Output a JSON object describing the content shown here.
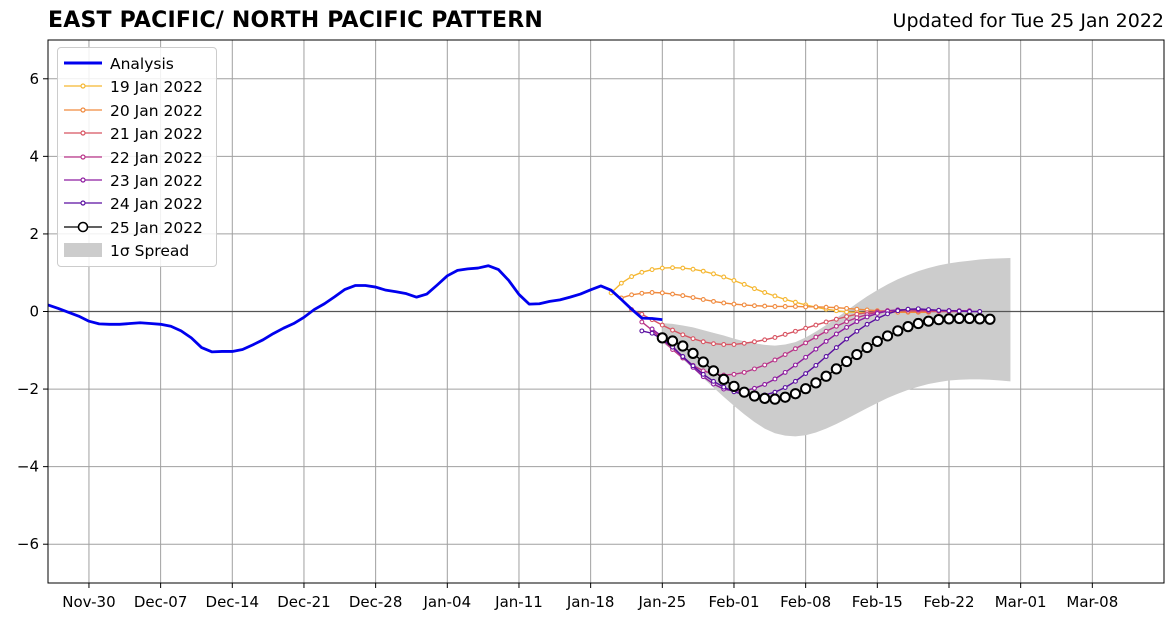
{
  "title": "EAST PACIFIC/ NORTH PACIFIC PATTERN",
  "updated": "Updated for Tue 25 Jan 2022",
  "chart_data": {
    "type": "line",
    "title": "EAST PACIFIC/ NORTH PACIFIC PATTERN",
    "xlabel": "",
    "ylabel": "",
    "ylim": [
      -7,
      7
    ],
    "yticks": [
      -6,
      -4,
      -2,
      0,
      2,
      4,
      6
    ],
    "ytick_labels": [
      "−6",
      "−4",
      "−2",
      "0",
      "2",
      "4",
      "6"
    ],
    "xlim": [
      "2021-11-26",
      "2022-03-15"
    ],
    "xticks": [
      "2021-11-30",
      "2021-12-07",
      "2021-12-14",
      "2021-12-21",
      "2021-12-28",
      "2022-01-04",
      "2022-01-11",
      "2022-01-18",
      "2022-01-25",
      "2022-02-01",
      "2022-02-08",
      "2022-02-15",
      "2022-02-22",
      "2022-03-01",
      "2022-03-08"
    ],
    "xtick_labels": [
      "Nov-30",
      "Dec-07",
      "Dec-14",
      "Dec-21",
      "Dec-28",
      "Jan-04",
      "Jan-11",
      "Jan-18",
      "Jan-25",
      "Feb-01",
      "Feb-08",
      "Feb-15",
      "Feb-22",
      "Mar-01",
      "Mar-08"
    ],
    "grid": true,
    "zero_line": true,
    "legend_position": "top-left",
    "colors": {
      "analysis": "#0000ee",
      "spread": "#cccccc",
      "grid": "#a0a0a0"
    },
    "analysis": {
      "name": "Analysis",
      "start_date": "2021-11-26",
      "values": [
        0.17,
        0.08,
        -0.02,
        -0.12,
        -0.25,
        -0.32,
        -0.33,
        -0.33,
        -0.31,
        -0.29,
        -0.31,
        -0.33,
        -0.38,
        -0.5,
        -0.68,
        -0.93,
        -1.04,
        -1.03,
        -1.03,
        -0.98,
        -0.86,
        -0.73,
        -0.57,
        -0.43,
        -0.31,
        -0.15,
        0.05,
        0.2,
        0.38,
        0.57,
        0.67,
        0.67,
        0.63,
        0.55,
        0.51,
        0.46,
        0.37,
        0.45,
        0.68,
        0.92,
        1.06,
        1.1,
        1.12,
        1.18,
        1.08,
        0.8,
        0.44,
        0.19,
        0.2,
        0.26,
        0.3,
        0.37,
        0.45,
        0.56,
        0.66,
        0.55,
        0.31,
        0.06,
        -0.17,
        -0.18,
        -0.21
      ]
    },
    "forecasts": [
      {
        "name": "19 Jan 2022",
        "color": "#f5b731",
        "start_date": "2022-01-20",
        "values": [
          0.48,
          0.73,
          0.9,
          1.01,
          1.08,
          1.12,
          1.13,
          1.12,
          1.09,
          1.04,
          0.97,
          0.89,
          0.8,
          0.7,
          0.59,
          0.49,
          0.4,
          0.31,
          0.24,
          0.17,
          0.11,
          0.06,
          0.02,
          -0.01,
          -0.02,
          -0.03,
          -0.02
        ]
      },
      {
        "name": "20 Jan 2022",
        "color": "#f08a3e",
        "start_date": "2022-01-21",
        "values": [
          0.35,
          0.43,
          0.47,
          0.49,
          0.48,
          0.45,
          0.41,
          0.36,
          0.31,
          0.26,
          0.22,
          0.19,
          0.17,
          0.15,
          0.14,
          0.13,
          0.13,
          0.13,
          0.12,
          0.12,
          0.11,
          0.1,
          0.08,
          0.06,
          0.04,
          0.02,
          0.0,
          -0.02,
          -0.02,
          -0.02,
          -0.02
        ]
      },
      {
        "name": "21 Jan 2022",
        "color": "#d85462",
        "start_date": "2022-01-22",
        "values": [
          0.05,
          -0.07,
          -0.21,
          -0.35,
          -0.48,
          -0.6,
          -0.7,
          -0.78,
          -0.83,
          -0.85,
          -0.85,
          -0.82,
          -0.78,
          -0.73,
          -0.67,
          -0.59,
          -0.51,
          -0.43,
          -0.35,
          -0.27,
          -0.2,
          -0.13,
          -0.07,
          -0.03,
          0.0,
          0.02,
          0.02,
          0.01,
          0.01,
          0.0,
          0.0,
          0.0,
          0.0
        ]
      },
      {
        "name": "22 Jan 2022",
        "color": "#b93489",
        "start_date": "2022-01-23",
        "values": [
          -0.27,
          -0.48,
          -0.73,
          -0.98,
          -1.2,
          -1.39,
          -1.53,
          -1.61,
          -1.64,
          -1.62,
          -1.57,
          -1.48,
          -1.38,
          -1.25,
          -1.11,
          -0.96,
          -0.81,
          -0.66,
          -0.51,
          -0.38,
          -0.26,
          -0.16,
          -0.08,
          -0.02,
          0.02,
          0.04,
          0.05,
          0.04,
          0.03,
          0.02,
          0.02,
          0.02,
          0.02
        ]
      },
      {
        "name": "23 Jan 2022",
        "color": "#8e1ca0",
        "start_date": "2022-01-24",
        "values": [
          -0.45,
          -0.65,
          -0.9,
          -1.17,
          -1.44,
          -1.68,
          -1.87,
          -2.0,
          -2.05,
          -2.04,
          -1.98,
          -1.88,
          -1.74,
          -1.57,
          -1.38,
          -1.18,
          -0.97,
          -0.77,
          -0.58,
          -0.41,
          -0.26,
          -0.14,
          -0.05,
          0.01,
          0.04,
          0.05,
          0.05,
          0.04,
          0.03,
          0.02,
          0.01,
          0.01
        ]
      },
      {
        "name": "24 Jan 2022",
        "color": "#5a0fa0",
        "start_date": "2022-01-23",
        "values": [
          -0.5,
          -0.56,
          -0.72,
          -0.92,
          -1.16,
          -1.4,
          -1.62,
          -1.8,
          -1.95,
          -2.07,
          -2.14,
          -2.17,
          -2.15,
          -2.08,
          -1.96,
          -1.8,
          -1.6,
          -1.39,
          -1.16,
          -0.93,
          -0.71,
          -0.51,
          -0.33,
          -0.18,
          -0.06,
          0.02,
          0.06,
          0.07,
          0.05,
          0.03,
          0.02,
          0.01,
          0.0,
          0.0
        ]
      },
      {
        "name": "25 Jan 2022",
        "color": "#000000",
        "start_date": "2022-01-25",
        "values": [
          -0.68,
          -0.76,
          -0.89,
          -1.08,
          -1.3,
          -1.53,
          -1.75,
          -1.93,
          -2.08,
          -2.18,
          -2.24,
          -2.26,
          -2.21,
          -2.12,
          -1.99,
          -1.84,
          -1.67,
          -1.48,
          -1.29,
          -1.11,
          -0.93,
          -0.77,
          -0.63,
          -0.5,
          -0.39,
          -0.31,
          -0.25,
          -0.21,
          -0.19,
          -0.18,
          -0.18,
          -0.19,
          -0.2
        ]
      }
    ],
    "spread": {
      "name": "1σ Spread",
      "start_date": "2022-01-25",
      "upper": [
        -0.3,
        -0.32,
        -0.36,
        -0.41,
        -0.48,
        -0.55,
        -0.62,
        -0.7,
        -0.77,
        -0.82,
        -0.86,
        -0.88,
        -0.85,
        -0.79,
        -0.67,
        -0.52,
        -0.35,
        -0.17,
        0.02,
        0.21,
        0.39,
        0.55,
        0.7,
        0.83,
        0.94,
        1.04,
        1.12,
        1.19,
        1.24,
        1.28,
        1.31,
        1.34,
        1.36,
        1.37,
        1.38
      ],
      "lower": [
        -0.8,
        -1.0,
        -1.23,
        -1.47,
        -1.72,
        -1.96,
        -2.2,
        -2.43,
        -2.65,
        -2.85,
        -3.02,
        -3.14,
        -3.2,
        -3.22,
        -3.19,
        -3.12,
        -3.02,
        -2.9,
        -2.77,
        -2.63,
        -2.49,
        -2.36,
        -2.23,
        -2.12,
        -2.02,
        -1.94,
        -1.87,
        -1.82,
        -1.78,
        -1.76,
        -1.75,
        -1.75,
        -1.76,
        -1.78,
        -1.8
      ]
    },
    "legend": [
      "Analysis",
      "19 Jan 2022",
      "20 Jan 2022",
      "21 Jan 2022",
      "22 Jan 2022",
      "23 Jan 2022",
      "24 Jan 2022",
      "25 Jan 2022",
      "1σ Spread"
    ]
  }
}
